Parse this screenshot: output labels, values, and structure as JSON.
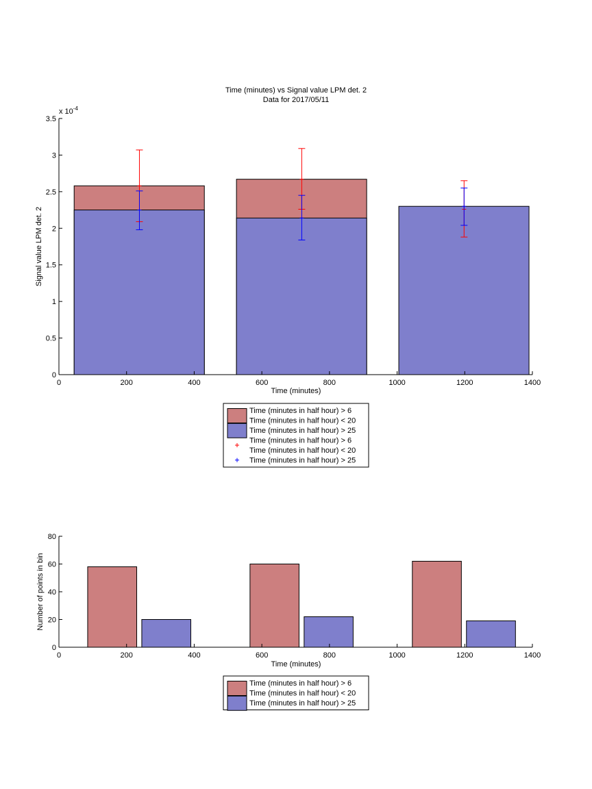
{
  "chart_data": [
    {
      "type": "bar",
      "title": "Time (minutes) vs Signal value LPM det. 2",
      "subtitle": "Data for 2017/05/11",
      "xlabel": "Time (minutes)",
      "ylabel": "Signal value LPM det. 2",
      "exponent_label": "x 10",
      "exponent_power": "-4",
      "xlim": [
        0,
        1400
      ],
      "ylim": [
        0,
        3.5
      ],
      "xticks": [
        0,
        200,
        400,
        600,
        800,
        1000,
        1200,
        1400
      ],
      "yticks": [
        0,
        0.5,
        1,
        1.5,
        2,
        2.5,
        3,
        3.5
      ],
      "grid": false,
      "legend_placement": "below",
      "colors": {
        "red_bar": "#cc7f7f",
        "blue_bar": "#7f7fcc",
        "red_err": "#ff0000",
        "blue_err": "#0000ff"
      },
      "bars": [
        {
          "x_start": 45,
          "x_end": 430,
          "series_red": 2.58,
          "series_blue": 2.25
        },
        {
          "x_start": 525,
          "x_end": 910,
          "series_red": 2.67,
          "series_blue": 2.14
        },
        {
          "x_start": 1005,
          "x_end": 1390,
          "series_red": null,
          "series_blue": 2.3
        }
      ],
      "errorbars": [
        {
          "x": 238,
          "series": "red",
          "center": 2.58,
          "low": 2.09,
          "high": 3.07
        },
        {
          "x": 238,
          "series": "blue",
          "center": 2.25,
          "low": 1.98,
          "high": 2.51
        },
        {
          "x": 718,
          "series": "red",
          "center": 2.67,
          "low": 2.26,
          "high": 3.09
        },
        {
          "x": 718,
          "series": "blue",
          "center": 2.14,
          "low": 1.84,
          "high": 2.45
        },
        {
          "x": 1198,
          "series": "red",
          "center": 2.26,
          "low": 1.88,
          "high": 2.65
        },
        {
          "x": 1198,
          "series": "blue",
          "center": 2.3,
          "low": 2.04,
          "high": 2.55
        }
      ],
      "legend": [
        {
          "kind": "patch",
          "color": "red",
          "lines": [
            "Time (minutes in half hour) > 6",
            "Time (minutes in half hour) < 20"
          ]
        },
        {
          "kind": "patch",
          "color": "blue",
          "lines": [
            "Time (minutes in half hour) > 25"
          ]
        },
        {
          "kind": "marker",
          "color": "red",
          "lines": [
            "Time (minutes in half hour) > 6",
            "Time (minutes in half hour) < 20"
          ]
        },
        {
          "kind": "marker",
          "color": "blue",
          "lines": [
            "Time (minutes in half hour) > 25"
          ]
        }
      ]
    },
    {
      "type": "bar",
      "xlabel": "Time (minutes)",
      "ylabel": "Number of points in bin",
      "xlim": [
        0,
        1400
      ],
      "ylim": [
        0,
        80
      ],
      "xticks": [
        0,
        200,
        400,
        600,
        800,
        1000,
        1200,
        1400
      ],
      "yticks": [
        0,
        20,
        40,
        60,
        80
      ],
      "grid": false,
      "legend_placement": "below",
      "colors": {
        "red_bar": "#cc7f7f",
        "blue_bar": "#7f7fcc"
      },
      "series": [
        {
          "name": "Time (minutes in half hour) > 6 / Time (minutes in half hour) < 20",
          "color": "red",
          "bars": [
            {
              "x_start": 85,
              "x_end": 230,
              "value": 58
            },
            {
              "x_start": 565,
              "x_end": 710,
              "value": 60
            },
            {
              "x_start": 1045,
              "x_end": 1190,
              "value": 62
            }
          ]
        },
        {
          "name": "Time (minutes in half hour) > 25",
          "color": "blue",
          "bars": [
            {
              "x_start": 245,
              "x_end": 390,
              "value": 20
            },
            {
              "x_start": 725,
              "x_end": 870,
              "value": 22
            },
            {
              "x_start": 1205,
              "x_end": 1350,
              "value": 19
            }
          ]
        }
      ],
      "legend": [
        {
          "kind": "patch",
          "color": "red",
          "lines": [
            "Time (minutes in half hour) > 6",
            "Time (minutes in half hour) < 20"
          ]
        },
        {
          "kind": "patch",
          "color": "blue",
          "lines": [
            "Time (minutes in half hour) > 25"
          ]
        }
      ]
    }
  ]
}
